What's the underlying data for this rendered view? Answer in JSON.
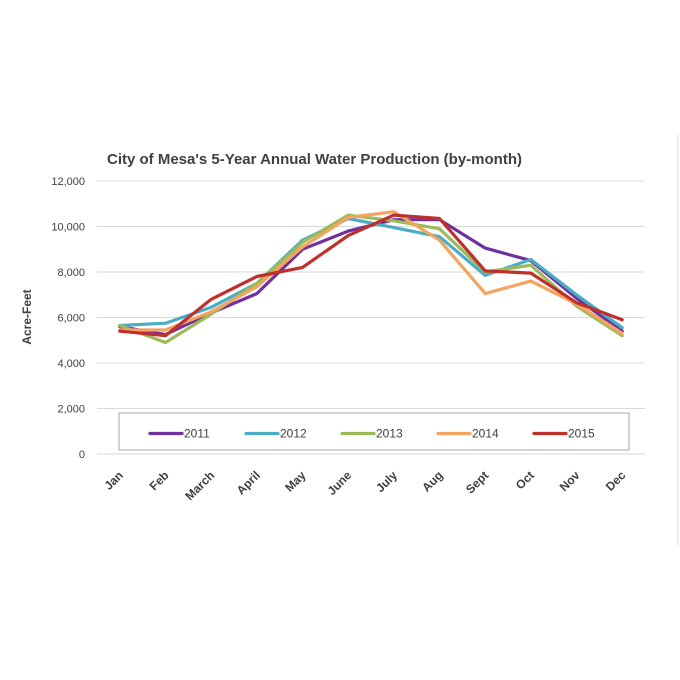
{
  "chart_data": {
    "type": "line",
    "title": "City of Mesa's 5-Year Annual Water Production (by-month)",
    "ylabel": "Acre-Feet",
    "xlabel": "",
    "ylim": [
      0,
      12000
    ],
    "yticks": [
      0,
      2000,
      4000,
      6000,
      8000,
      10000,
      12000
    ],
    "ytick_labels": [
      "0",
      "2,000",
      "4,000",
      "6,000",
      "8,000",
      "10,000",
      "12,000"
    ],
    "categories": [
      "Jan",
      "Feb",
      "March",
      "April",
      "May",
      "June",
      "July",
      "Aug",
      "Sept",
      "Oct",
      "Nov",
      "Dec"
    ],
    "grid": true,
    "legend_position": "bottom-inside",
    "series": [
      {
        "name": "2011",
        "color": "#7030a0",
        "values": [
          5600,
          5250,
          6200,
          7050,
          9000,
          9800,
          10300,
          10300,
          9050,
          8500,
          6850,
          5400
        ]
      },
      {
        "name": "2012",
        "color": "#4bacc6",
        "values": [
          5650,
          5750,
          6450,
          7500,
          9400,
          10350,
          9950,
          9550,
          7850,
          8550,
          7000,
          5550
        ]
      },
      {
        "name": "2013",
        "color": "#9bbb59",
        "values": [
          5650,
          4900,
          6150,
          7500,
          9300,
          10500,
          10250,
          9900,
          8000,
          8300,
          6500,
          5200
        ]
      },
      {
        "name": "2014",
        "color": "#f4a460",
        "values": [
          5450,
          5450,
          6250,
          7350,
          9100,
          10400,
          10650,
          9400,
          7050,
          7600,
          6600,
          5300
        ]
      },
      {
        "name": "2015",
        "color": "#c0302b",
        "values": [
          5400,
          5200,
          6800,
          7800,
          8200,
          9600,
          10500,
          10350,
          8050,
          7950,
          6650,
          5900
        ]
      }
    ]
  }
}
